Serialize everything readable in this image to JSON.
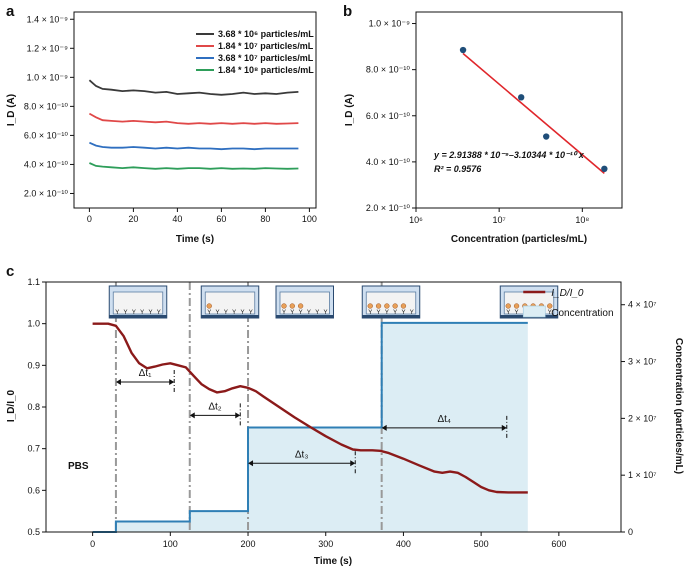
{
  "chart_data": [
    {
      "panel": "a",
      "type": "line",
      "xlabel": "Time (s)",
      "ylabel": "I_D (A)",
      "xlim": [
        -7,
        103
      ],
      "ylim": [
        1e-10,
        1.45e-09
      ],
      "xticks": [
        0,
        20,
        40,
        60,
        80,
        100
      ],
      "ytick_labels": [
        "2.0 × 10⁻¹⁰",
        "4.0 × 10⁻¹⁰",
        "6.0 × 10⁻¹⁰",
        "8.0 × 10⁻¹⁰",
        "1.0 × 10⁻⁹",
        "1.2 × 10⁻⁹",
        "1.4 × 10⁻⁹"
      ],
      "ytick_values": [
        2e-10,
        4e-10,
        6e-10,
        8e-10,
        1e-09,
        1.2e-09,
        1.4e-09
      ],
      "legend_position": "top-right",
      "series": [
        {
          "name": "3.68 * 10⁶ particles/mL",
          "color": "#3a3a3a",
          "x": [
            0,
            3,
            6,
            10,
            15,
            20,
            25,
            30,
            35,
            40,
            45,
            50,
            55,
            60,
            65,
            70,
            75,
            80,
            85,
            90,
            95
          ],
          "y": [
            9.8e-10,
            9.4e-10,
            9.2e-10,
            9.15e-10,
            9.05e-10,
            9.1e-10,
            9.05e-10,
            8.95e-10,
            9e-10,
            8.85e-10,
            8.9e-10,
            8.95e-10,
            8.85e-10,
            8.8e-10,
            8.85e-10,
            8.95e-10,
            8.85e-10,
            8.9e-10,
            8.85e-10,
            8.95e-10,
            9e-10
          ]
        },
        {
          "name": "1.84 * 10⁷ particles/mL",
          "color": "#e04848",
          "x": [
            0,
            3,
            6,
            10,
            15,
            20,
            25,
            30,
            35,
            40,
            45,
            50,
            55,
            60,
            65,
            70,
            75,
            80,
            85,
            90,
            95
          ],
          "y": [
            7.5e-10,
            7.25e-10,
            7.05e-10,
            7e-10,
            6.95e-10,
            7e-10,
            6.95e-10,
            6.9e-10,
            6.95e-10,
            6.85e-10,
            6.8e-10,
            6.85e-10,
            6.8e-10,
            6.85e-10,
            6.8e-10,
            6.85e-10,
            6.8e-10,
            6.85e-10,
            6.8e-10,
            6.82e-10,
            6.85e-10
          ]
        },
        {
          "name": "3.68 * 10⁷ particles/mL",
          "color": "#2f6fc0",
          "x": [
            0,
            3,
            6,
            10,
            15,
            20,
            25,
            30,
            35,
            40,
            45,
            50,
            55,
            60,
            65,
            70,
            75,
            80,
            85,
            90,
            95
          ],
          "y": [
            5.5e-10,
            5.3e-10,
            5.2e-10,
            5.15e-10,
            5.15e-10,
            5.2e-10,
            5.15e-10,
            5.1e-10,
            5.15e-10,
            5.1e-10,
            5.15e-10,
            5.1e-10,
            5.1e-10,
            5.05e-10,
            5.1e-10,
            5.1e-10,
            5.05e-10,
            5.1e-10,
            5.1e-10,
            5.1e-10,
            5.1e-10
          ]
        },
        {
          "name": "1.84 * 10⁸ particles/mL",
          "color": "#2e9e5a",
          "x": [
            0,
            3,
            6,
            10,
            15,
            20,
            25,
            30,
            35,
            40,
            45,
            50,
            55,
            60,
            65,
            70,
            75,
            80,
            85,
            90,
            95
          ],
          "y": [
            4.1e-10,
            3.9e-10,
            3.85e-10,
            3.8e-10,
            3.75e-10,
            3.8e-10,
            3.75e-10,
            3.7e-10,
            3.75e-10,
            3.7e-10,
            3.75e-10,
            3.75e-10,
            3.7e-10,
            3.75e-10,
            3.7e-10,
            3.72e-10,
            3.7e-10,
            3.75e-10,
            3.72e-10,
            3.7e-10,
            3.72e-10
          ]
        }
      ]
    },
    {
      "panel": "b",
      "type": "scatter",
      "xlabel": "Concentration (particles/mL)",
      "ylabel": "I_D (A)",
      "xscale": "log",
      "xlim": [
        1000000.0,
        300000000.0
      ],
      "ylim": [
        2e-10,
        1.05e-09
      ],
      "xtick_values": [
        1000000.0,
        10000000.0,
        100000000.0
      ],
      "xtick_labels": [
        "10⁶",
        "10⁷",
        "10⁸"
      ],
      "ytick_values": [
        2e-10,
        4e-10,
        6e-10,
        8e-10,
        1e-09
      ],
      "ytick_labels": [
        "2.0 × 10⁻¹⁰",
        "4.0 × 10⁻¹⁰",
        "6.0 × 10⁻¹⁰",
        "8.0 × 10⁻¹⁰",
        "1.0 × 10⁻⁹"
      ],
      "points": {
        "x": [
          3680000.0,
          18400000.0,
          36800000.0,
          184000000.0
        ],
        "y": [
          8.85e-10,
          6.8e-10,
          5.1e-10,
          3.7e-10
        ]
      },
      "point_color": "#1f4e79",
      "fit": {
        "x": [
          3680000.0,
          184000000.0
        ],
        "y": [
          8.7e-10,
          3.5e-10
        ],
        "color": "#e0262b"
      },
      "equation": "y = 2.91388 * 10⁻⁹–3.10344 * 10⁻¹⁰ x",
      "r2": "R² = 0.9576"
    },
    {
      "panel": "c",
      "type": "line",
      "xlabel": "Time (s)",
      "ylabel": "I_D/I_0",
      "y2label": "Concentration (particles/mL)",
      "xlim": [
        -60,
        680
      ],
      "ylim": [
        0.5,
        1.1
      ],
      "y2lim": [
        0,
        44000000.0
      ],
      "xticks": [
        0,
        100,
        200,
        300,
        400,
        500,
        600
      ],
      "yticks": [
        0.5,
        0.6,
        0.7,
        0.8,
        0.9,
        1.0,
        1.1
      ],
      "y2tick_values": [
        0,
        10000000.0,
        20000000.0,
        30000000.0,
        40000000.0
      ],
      "y2tick_labels": [
        "0",
        "1 × 10⁷",
        "2 × 10⁷",
        "3 × 10⁷",
        "4 × 10⁷"
      ],
      "legend": [
        "I_D/I_0",
        "Concentration"
      ],
      "legend_position": "top-right",
      "colors": {
        "ratio": "#8b1a1a",
        "concentration": "#2f7fb5",
        "fill": "#dcedf4",
        "dashes": "#999999"
      },
      "ratio_series": {
        "x": [
          0,
          10,
          20,
          30,
          40,
          50,
          60,
          70,
          80,
          90,
          100,
          110,
          120,
          130,
          140,
          150,
          160,
          170,
          180,
          190,
          200,
          210,
          220,
          240,
          260,
          280,
          300,
          320,
          335,
          345,
          360,
          370,
          380,
          400,
          420,
          440,
          450,
          460,
          470,
          480,
          490,
          500,
          510,
          520,
          535,
          545,
          560
        ],
        "y": [
          1.0,
          1.0,
          1.0,
          0.995,
          0.97,
          0.93,
          0.905,
          0.893,
          0.897,
          0.902,
          0.905,
          0.9,
          0.895,
          0.875,
          0.855,
          0.843,
          0.835,
          0.838,
          0.845,
          0.85,
          0.846,
          0.838,
          0.825,
          0.8,
          0.775,
          0.752,
          0.73,
          0.71,
          0.698,
          0.696,
          0.696,
          0.695,
          0.69,
          0.676,
          0.66,
          0.645,
          0.642,
          0.645,
          0.642,
          0.632,
          0.62,
          0.608,
          0.6,
          0.596,
          0.595,
          0.595,
          0.595
        ]
      },
      "concentration_steps": {
        "x": [
          0,
          30,
          30,
          125,
          125,
          200,
          200,
          372,
          372,
          560
        ],
        "y": [
          0,
          0,
          1840000.0,
          1840000.0,
          3680000.0,
          3680000.0,
          18400000.0,
          18400000.0,
          36800000.0,
          36800000.0
        ]
      },
      "dashed_lines_x": [
        30,
        125,
        200,
        372
      ],
      "annotations": [
        {
          "label": "Δt₁",
          "x_from": 30,
          "x_to": 105,
          "y": 0.86
        },
        {
          "label": "Δt₂",
          "x_from": 125,
          "x_to": 190,
          "y": 0.78
        },
        {
          "label": "Δt₃",
          "x_from": 200,
          "x_to": 338,
          "y": 0.665
        },
        {
          "label": "Δt₄",
          "x_from": 372,
          "x_to": 533,
          "y": 0.75
        }
      ],
      "text_label": "PBS"
    }
  ],
  "panels": {
    "a": {
      "letter": "a"
    },
    "b": {
      "letter": "b"
    },
    "c": {
      "letter": "c"
    }
  }
}
